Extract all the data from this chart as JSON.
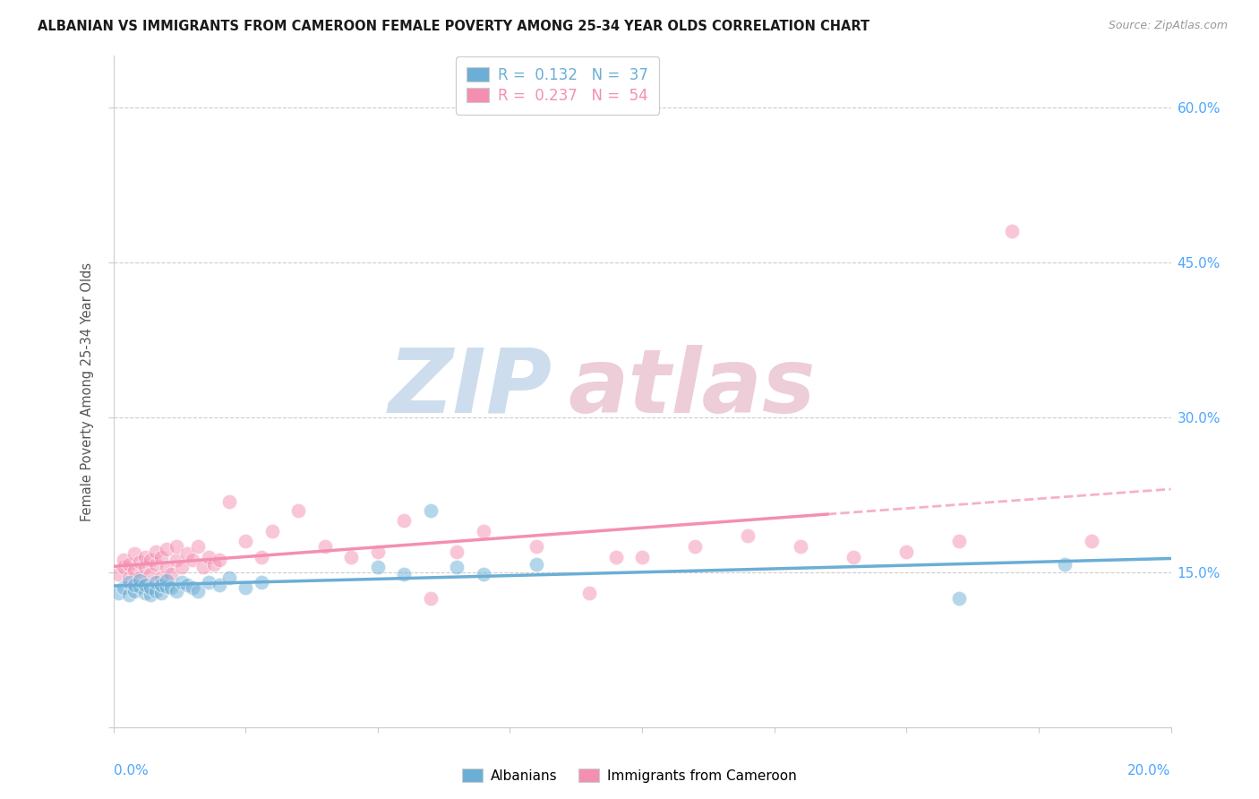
{
  "title": "ALBANIAN VS IMMIGRANTS FROM CAMEROON FEMALE POVERTY AMONG 25-34 YEAR OLDS CORRELATION CHART",
  "source": "Source: ZipAtlas.com",
  "ylabel": "Female Poverty Among 25-34 Year Olds",
  "x_range": [
    0.0,
    0.2
  ],
  "y_range": [
    0.0,
    0.65
  ],
  "y_ticks": [
    0.0,
    0.15,
    0.3,
    0.45,
    0.6
  ],
  "y_tick_labels": [
    "",
    "15.0%",
    "30.0%",
    "45.0%",
    "60.0%"
  ],
  "legend_r_labels": [
    "R =  0.132   N =  37",
    "R =  0.237   N =  54"
  ],
  "legend_labels": [
    "Albanians",
    "Immigrants from Cameroon"
  ],
  "albanians_color": "#6baed6",
  "cameroon_color": "#f48fb1",
  "background_color": "#ffffff",
  "grid_color": "#cccccc",
  "albanians_x": [
    0.001,
    0.002,
    0.003,
    0.003,
    0.004,
    0.004,
    0.005,
    0.005,
    0.006,
    0.006,
    0.007,
    0.007,
    0.008,
    0.008,
    0.009,
    0.009,
    0.01,
    0.01,
    0.011,
    0.012,
    0.013,
    0.014,
    0.015,
    0.016,
    0.018,
    0.02,
    0.022,
    0.025,
    0.028,
    0.05,
    0.055,
    0.06,
    0.065,
    0.07,
    0.08,
    0.16,
    0.18
  ],
  "albanians_y": [
    0.13,
    0.135,
    0.128,
    0.14,
    0.132,
    0.138,
    0.136,
    0.142,
    0.13,
    0.138,
    0.128,
    0.135,
    0.132,
    0.14,
    0.13,
    0.138,
    0.136,
    0.142,
    0.135,
    0.132,
    0.14,
    0.138,
    0.135,
    0.132,
    0.14,
    0.138,
    0.145,
    0.135,
    0.14,
    0.155,
    0.148,
    0.21,
    0.155,
    0.148,
    0.158,
    0.125,
    0.158
  ],
  "cameroon_x": [
    0.001,
    0.002,
    0.002,
    0.003,
    0.003,
    0.004,
    0.004,
    0.005,
    0.005,
    0.006,
    0.006,
    0.007,
    0.007,
    0.008,
    0.008,
    0.009,
    0.009,
    0.01,
    0.01,
    0.011,
    0.012,
    0.012,
    0.013,
    0.014,
    0.015,
    0.016,
    0.017,
    0.018,
    0.019,
    0.02,
    0.022,
    0.025,
    0.028,
    0.03,
    0.035,
    0.04,
    0.045,
    0.05,
    0.055,
    0.06,
    0.065,
    0.07,
    0.08,
    0.09,
    0.095,
    0.1,
    0.11,
    0.12,
    0.13,
    0.14,
    0.15,
    0.16,
    0.17,
    0.185
  ],
  "cameroon_y": [
    0.148,
    0.155,
    0.162,
    0.145,
    0.158,
    0.152,
    0.168,
    0.145,
    0.16,
    0.155,
    0.165,
    0.148,
    0.162,
    0.158,
    0.17,
    0.145,
    0.165,
    0.155,
    0.172,
    0.148,
    0.162,
    0.175,
    0.155,
    0.168,
    0.162,
    0.175,
    0.155,
    0.165,
    0.158,
    0.162,
    0.218,
    0.18,
    0.165,
    0.19,
    0.21,
    0.175,
    0.165,
    0.17,
    0.2,
    0.125,
    0.17,
    0.19,
    0.175,
    0.13,
    0.165,
    0.165,
    0.175,
    0.185,
    0.175,
    0.165,
    0.17,
    0.18,
    0.48,
    0.18
  ],
  "watermark_zip_color": "#c5d8ea",
  "watermark_atlas_color": "#eac5d0"
}
